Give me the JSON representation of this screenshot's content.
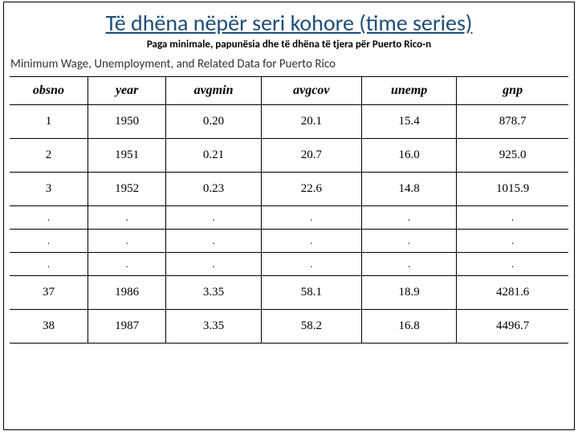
{
  "title": "Të dhëna nëpër seri kohore (time series)",
  "subtitle": "Paga minimale, papunësia dhe të dhëna të tjera për Puerto Rico-n",
  "table_title": "Minimum Wage, Unemployment, and Related Data for Puerto Rico",
  "table": {
    "columns": [
      "obsno",
      "year",
      "avgmin",
      "avgcov",
      "unemp",
      "gnp"
    ],
    "col_widths_pct": [
      14,
      14,
      17,
      18,
      17,
      20
    ],
    "header_fontsize": 16,
    "cell_fontsize": 15,
    "border_color": "#000000",
    "rows": [
      [
        "1",
        "1950",
        "0.20",
        "20.1",
        "15.4",
        "878.7"
      ],
      [
        "2",
        "1951",
        "0.21",
        "20.7",
        "16.0",
        "925.0"
      ],
      [
        "3",
        "1952",
        "0.23",
        "22.6",
        "14.8",
        "1015.9"
      ],
      [
        ".",
        ".",
        ".",
        ".",
        ".",
        "."
      ],
      [
        ".",
        ".",
        ".",
        ".",
        ".",
        "."
      ],
      [
        ".",
        ".",
        ".",
        ".",
        ".",
        "."
      ],
      [
        "37",
        "1986",
        "3.35",
        "58.1",
        "18.9",
        "4281.6"
      ],
      [
        "38",
        "1987",
        "3.35",
        "58.2",
        "16.8",
        "4496.7"
      ]
    ],
    "dot_row_indices": [
      3,
      4,
      5
    ]
  },
  "colors": {
    "title": "#1f4e79",
    "text": "#000000",
    "background": "#ffffff"
  }
}
